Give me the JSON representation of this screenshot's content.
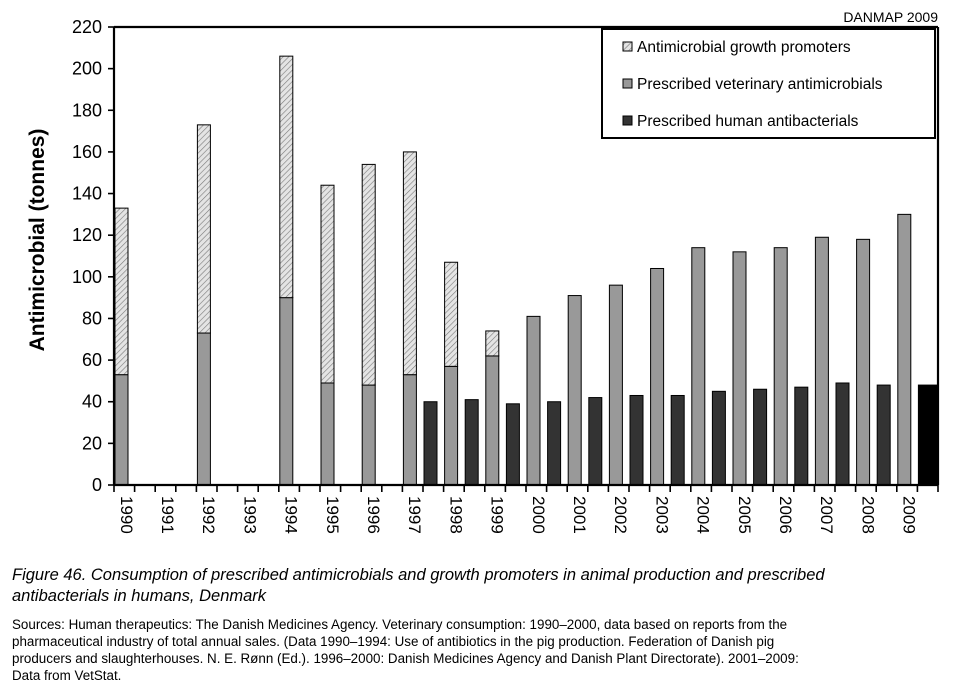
{
  "corner_label": "DANMAP 2009",
  "caption": {
    "line1": "Figure 46. Consumption of prescribed antimicrobials and growth promoters in animal production and prescribed",
    "line2": "antibacterials in humans, Denmark"
  },
  "sources": {
    "line1": "Sources: Human therapeutics: The Danish Medicines Agency. Veterinary consumption: 1990–2000, data based on reports from the",
    "line2": "pharmaceutical industry of total annual sales. (Data 1990–1994:  Use of antibiotics in the pig production. Federation of Danish pig",
    "line3": "producers and slaughterhouses. N. E. Rønn (Ed.). 1996–2000: Danish Medicines Agency and Danish Plant Directorate). 2001–2009:",
    "line4": "Data from VetStat."
  },
  "colors": {
    "growth_promoters": "#d8d8d8",
    "veterinary": "#999999",
    "human": "#333333",
    "human_last": "#000000"
  },
  "chart_data": {
    "type": "bar",
    "title": "",
    "xlabel": "",
    "ylabel": "Antimicrobial (tonnes)",
    "ylim": [
      0,
      220
    ],
    "yticks": [
      0,
      20,
      40,
      60,
      80,
      100,
      120,
      140,
      160,
      180,
      200,
      220
    ],
    "grid": false,
    "legend_position": "top-right",
    "categories": [
      "1990",
      "1991",
      "1992",
      "1993",
      "1994",
      "1995",
      "1996",
      "1997",
      "1998",
      "1999",
      "2000",
      "2001",
      "2002",
      "2003",
      "2004",
      "2005",
      "2006",
      "2007",
      "2008",
      "2009"
    ],
    "series": [
      {
        "name": "Antimicrobial growth promoters",
        "stacked_on": "Prescribed veterinary antimicrobials",
        "values": [
          80,
          null,
          100,
          null,
          116,
          95,
          106,
          107,
          50,
          12,
          0,
          0,
          0,
          0,
          0,
          0,
          0,
          0,
          0,
          0
        ]
      },
      {
        "name": "Prescribed veterinary antimicrobials",
        "values": [
          53,
          null,
          73,
          null,
          90,
          49,
          48,
          53,
          57,
          62,
          81,
          91,
          96,
          104,
          114,
          112,
          114,
          119,
          118,
          130
        ]
      },
      {
        "name": "Prescribed human antibacterials",
        "values": [
          null,
          null,
          null,
          null,
          null,
          null,
          null,
          40,
          41,
          39,
          40,
          42,
          43,
          43,
          45,
          46,
          47,
          49,
          48,
          48
        ]
      }
    ]
  }
}
